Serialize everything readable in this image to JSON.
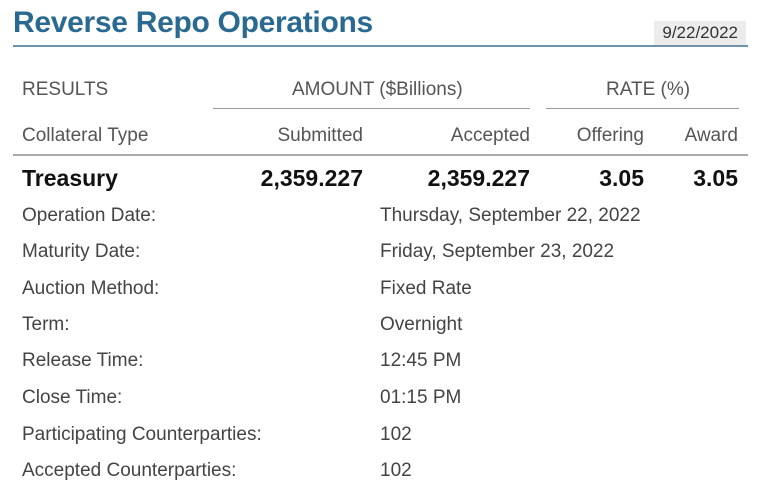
{
  "header": {
    "title": "Reverse Repo Operations",
    "date": "9/22/2022"
  },
  "columns": {
    "results": "RESULTS",
    "amount_group": "AMOUNT ($Billions)",
    "rate_group": "RATE (%)",
    "collateral_type": "Collateral Type",
    "submitted": "Submitted",
    "accepted": "Accepted",
    "offering": "Offering",
    "award": "Award"
  },
  "treasury_row": {
    "type": "Treasury",
    "submitted": "2,359.227",
    "accepted": "2,359.227",
    "offering": "3.05",
    "award": "3.05"
  },
  "details": [
    {
      "label": "Operation Date:",
      "value": "Thursday, September 22, 2022"
    },
    {
      "label": "Maturity Date:",
      "value": "Friday, September 23, 2022"
    },
    {
      "label": "Auction Method:",
      "value": "Fixed Rate"
    },
    {
      "label": "Term:",
      "value": "Overnight"
    },
    {
      "label": "Release Time:",
      "value": "12:45 PM"
    },
    {
      "label": "Close Time:",
      "value": "01:15 PM"
    },
    {
      "label": "Participating Counterparties:",
      "value": "102"
    },
    {
      "label": "Accepted Counterparties:",
      "value": "102"
    }
  ]
}
